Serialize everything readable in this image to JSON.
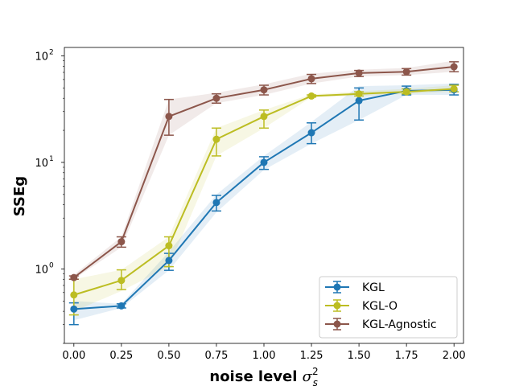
{
  "chart_data": {
    "type": "line",
    "xlabel_text": "noise level ",
    "xlabel_symbol": "σ",
    "xlabel_superscript": "2",
    "xlabel_subscript": "s",
    "ylabel": "SSEg",
    "yscale": "log",
    "xlim": [
      -0.05,
      2.05
    ],
    "ylim": [
      0.2,
      120
    ],
    "x": [
      0.0,
      0.25,
      0.5,
      0.75,
      1.0,
      1.25,
      1.5,
      1.75,
      2.0
    ],
    "xtick_values": [
      0.0,
      0.25,
      0.5,
      0.75,
      1.0,
      1.25,
      1.5,
      1.75,
      2.0
    ],
    "xtick_labels": [
      "0.00",
      "0.25",
      "0.50",
      "0.75",
      "1.00",
      "1.25",
      "1.50",
      "1.75",
      "2.00"
    ],
    "ytick_values": [
      1,
      10,
      100
    ],
    "ytick_labels": [
      {
        "base": "10",
        "exp": "0"
      },
      {
        "base": "10",
        "exp": "1"
      },
      {
        "base": "10",
        "exp": "2"
      }
    ],
    "legend_position": "lower-right",
    "series": [
      {
        "name": "KGL",
        "color": "#1f77b4",
        "values": [
          0.42,
          0.45,
          1.2,
          4.2,
          10.0,
          19.0,
          38.0,
          47.0,
          48.0
        ],
        "err_low": [
          0.3,
          0.43,
          0.97,
          3.5,
          8.6,
          15.0,
          25.0,
          43.0,
          43.0
        ],
        "err_high": [
          0.48,
          0.47,
          1.4,
          4.9,
          11.3,
          23.5,
          50.0,
          52.0,
          54.0
        ],
        "band_low": [
          0.33,
          0.43,
          0.97,
          3.4,
          8.5,
          15.0,
          25.0,
          43.0,
          43.0
        ],
        "band_high": [
          0.5,
          0.47,
          1.45,
          5.0,
          11.5,
          24.0,
          52.0,
          53.0,
          55.0
        ]
      },
      {
        "name": "KGL-O",
        "color": "#bcbd22",
        "values": [
          0.57,
          0.78,
          1.65,
          16.5,
          27.0,
          42.0,
          44.0,
          46.0,
          49.0
        ],
        "err_low": [
          0.37,
          0.64,
          1.05,
          11.5,
          21.0,
          41.0,
          42.0,
          44.0,
          46.0
        ],
        "err_high": [
          0.8,
          0.98,
          2.0,
          21.0,
          31.0,
          43.0,
          46.0,
          49.0,
          53.0
        ],
        "band_low": [
          0.4,
          0.62,
          1.05,
          11.5,
          21.0,
          41.0,
          42.0,
          44.0,
          46.0
        ],
        "band_high": [
          0.8,
          0.98,
          2.0,
          21.0,
          31.0,
          43.5,
          46.5,
          49.0,
          53.0
        ]
      },
      {
        "name": "KGL-Agnostic",
        "color": "#8c564b",
        "values": [
          0.83,
          1.8,
          27.0,
          40.0,
          48.0,
          61.0,
          69.0,
          71.0,
          79.0
        ],
        "err_low": [
          0.8,
          1.6,
          18.0,
          36.0,
          43.0,
          55.0,
          64.0,
          66.0,
          71.0
        ],
        "err_high": [
          0.86,
          2.0,
          39.0,
          44.0,
          53.0,
          67.0,
          73.0,
          76.0,
          88.0
        ],
        "band_low": [
          0.8,
          1.6,
          18.0,
          36.0,
          43.0,
          55.0,
          64.0,
          66.0,
          71.0
        ],
        "band_high": [
          0.88,
          2.0,
          39.0,
          45.0,
          54.0,
          68.0,
          74.0,
          77.0,
          90.0
        ]
      }
    ]
  }
}
